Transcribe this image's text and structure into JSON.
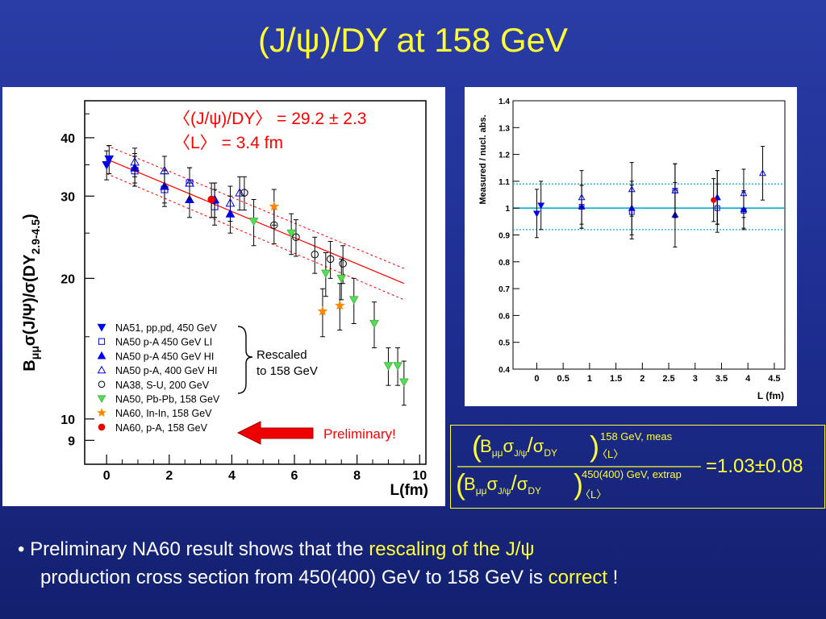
{
  "slide": {
    "title": "(J/ψ)/DY at 158 GeV",
    "bullet": {
      "marker": "•",
      "p1": "Preliminary NA60 result shows that the ",
      "h1": "rescaling of the J/ψ",
      "p2": "production cross section from 450(400) GeV to 158 GeV is ",
      "h2": "correct",
      "p3": " !"
    }
  },
  "colors": {
    "title": "#ffff33",
    "background": "#1f2f94",
    "fit": "#ff0000",
    "preliminary": "#ff0000",
    "cyan": "#00b0d0"
  },
  "chart_data": [
    {
      "type": "scatter",
      "ylabel_parts": {
        "b": "B",
        "mumu": "μμ",
        "sigma1": "σ(J/Ψ)/σ(DY",
        "sub": "2.9-4.5",
        "close": ")"
      },
      "xlabel": "L(fm)",
      "xlim": [
        -0.7,
        10.2
      ],
      "ylim": [
        8,
        48
      ],
      "yscale": "log",
      "x_ticks": [
        0,
        2,
        4,
        6,
        8,
        10
      ],
      "y_ticks": [
        9,
        10,
        20,
        30,
        40
      ],
      "annotation": {
        "line1": "〈(J/ψ)/DY〉 = 29.2 ± 2.3",
        "line2": "〈L〉 = 3.4 fm",
        "color": "#ff0000"
      },
      "fit": {
        "x": [
          0,
          9.5
        ],
        "y": [
          36,
          19.5
        ],
        "upper": [
          38.5,
          21
        ],
        "lower": [
          33.5,
          18
        ]
      },
      "bracket_label": {
        "line1": "Rescaled",
        "line2": "to 158 GeV"
      },
      "preliminary_label": "Preliminary!",
      "legend": [
        {
          "label": "NA51, pp,pd, 450 GeV",
          "marker": "tri-down",
          "fill": "#0000ee",
          "stroke": "#0000ee"
        },
        {
          "label": "NA50 p-A 450 GeV LI",
          "marker": "square-open",
          "fill": "none",
          "stroke": "#0000ee"
        },
        {
          "label": "NA50 p-A 450 GeV HI",
          "marker": "tri-up",
          "fill": "#0000ee",
          "stroke": "#0000ee"
        },
        {
          "label": "NA50 p-A, 400 GeV HI",
          "marker": "tri-up-open",
          "fill": "none",
          "stroke": "#0000ee"
        },
        {
          "label": "NA38, S-U, 200 GeV",
          "marker": "circle-open",
          "fill": "none",
          "stroke": "#000000"
        },
        {
          "label": "NA50, Pb-Pb, 158 GeV",
          "marker": "tri-down",
          "fill": "#55dd55",
          "stroke": "#44bb44"
        },
        {
          "label": "NA60, In-In, 158 GeV",
          "marker": "star",
          "fill": "#ff8800",
          "stroke": "#ff8800"
        },
        {
          "label": "NA60, p-A, 158 GeV",
          "marker": "circle",
          "fill": "#ee0000",
          "stroke": "#ee0000"
        }
      ],
      "series": [
        {
          "name": "NA51, pp,pd, 450 GeV",
          "points": [
            {
              "x": 0,
              "y": 35,
              "err": 2.5
            },
            {
              "x": 0.08,
              "y": 36,
              "err": 2.5
            }
          ]
        },
        {
          "name": "NA50 p-A 450 GeV LI",
          "points": [
            {
              "x": 0.9,
              "y": 34,
              "err": 2.5
            },
            {
              "x": 1.85,
              "y": 31,
              "err": 2.5
            },
            {
              "x": 2.65,
              "y": 32,
              "err": 2.5
            },
            {
              "x": 3.45,
              "y": 28.5,
              "err": 2.5
            }
          ]
        },
        {
          "name": "NA50 p-A 450 GeV HI",
          "points": [
            {
              "x": 0.9,
              "y": 34.5,
              "err": 2.5
            },
            {
              "x": 1.85,
              "y": 31.5,
              "err": 2.5
            },
            {
              "x": 2.65,
              "y": 29.5,
              "err": 2.5
            },
            {
              "x": 3.45,
              "y": 29.5,
              "err": 2.5
            },
            {
              "x": 3.95,
              "y": 27.5,
              "err": 2.5
            }
          ]
        },
        {
          "name": "NA50 p-A, 400 GeV HI",
          "points": [
            {
              "x": 0.9,
              "y": 35.5,
              "err": 2.5
            },
            {
              "x": 1.85,
              "y": 34,
              "err": 2.5
            },
            {
              "x": 2.65,
              "y": 32,
              "err": 2.5
            },
            {
              "x": 3.45,
              "y": 29.5,
              "err": 2.5
            },
            {
              "x": 3.95,
              "y": 29,
              "err": 2.5
            },
            {
              "x": 4.25,
              "y": 30.5,
              "err": 2.5
            }
          ]
        },
        {
          "name": "NA38, S-U, 200 GeV",
          "points": [
            {
              "x": 4.4,
              "y": 30.5,
              "err": 2.5
            },
            {
              "x": 5.35,
              "y": 26,
              "err": 2.3
            },
            {
              "x": 6.05,
              "y": 24.5,
              "err": 2.2
            },
            {
              "x": 6.65,
              "y": 22.5,
              "err": 2
            },
            {
              "x": 7.15,
              "y": 22,
              "err": 2
            },
            {
              "x": 7.55,
              "y": 21.5,
              "err": 2
            }
          ]
        },
        {
          "name": "NA50, Pb-Pb, 158 GeV",
          "points": [
            {
              "x": 4.7,
              "y": 26.5,
              "err": 3
            },
            {
              "x": 5.9,
              "y": 25,
              "err": 2.5
            },
            {
              "x": 7.0,
              "y": 20.5,
              "err": 2.2
            },
            {
              "x": 7.5,
              "y": 20,
              "err": 2
            },
            {
              "x": 7.9,
              "y": 18,
              "err": 2
            },
            {
              "x": 8.55,
              "y": 16,
              "err": 1.8
            },
            {
              "x": 9.0,
              "y": 13,
              "err": 1.2
            },
            {
              "x": 9.3,
              "y": 13,
              "err": 1.2
            },
            {
              "x": 9.5,
              "y": 12,
              "err": 1.3
            }
          ]
        },
        {
          "name": "NA60, In-In, 158 GeV",
          "points": [
            {
              "x": 5.35,
              "y": 28.5,
              "err": 2.5
            },
            {
              "x": 6.9,
              "y": 17,
              "err": 2
            },
            {
              "x": 7.45,
              "y": 17.5,
              "err": 2
            }
          ]
        },
        {
          "name": "NA60, p-A, 158 GeV",
          "points": [
            {
              "x": 3.35,
              "y": 29.5,
              "err": 2.5
            }
          ]
        }
      ]
    },
    {
      "type": "scatter",
      "ylabel": "Measured / nucl. abs.",
      "xlabel": "L (fm)",
      "xlim": [
        -0.45,
        4.7
      ],
      "ylim": [
        0.4,
        1.4
      ],
      "x_ticks": [
        "0",
        "0.5",
        "1",
        "1.5",
        "2",
        "2.5",
        "3",
        "3.5",
        "4",
        "4.5"
      ],
      "y_ticks": [
        "0.4",
        "0.5",
        "0.6",
        "0.7",
        "0.8",
        "0.9",
        "1",
        "1.1",
        "1.2",
        "1.3",
        "1.4"
      ],
      "reference_line": 1.0,
      "band": [
        0.92,
        1.09
      ],
      "series": [
        {
          "name": "NA51, pp,pd, 450 GeV",
          "points": [
            {
              "x": 0,
              "y": 0.98,
              "err": 0.09
            },
            {
              "x": 0.08,
              "y": 1.01,
              "err": 0.09
            }
          ]
        },
        {
          "name": "NA50 p-A 450 GeV LI",
          "points": [
            {
              "x": 0.85,
              "y": 1.005,
              "err": 0.08
            },
            {
              "x": 1.8,
              "y": 0.985,
              "err": 0.1
            },
            {
              "x": 2.62,
              "y": 1.065,
              "err": 0.1
            },
            {
              "x": 3.42,
              "y": 1.0,
              "err": 0.09
            },
            {
              "x": 3.92,
              "y": 0.99,
              "err": 0.07
            }
          ]
        },
        {
          "name": "NA50 p-A 450 GeV HI",
          "points": [
            {
              "x": 0.85,
              "y": 1.005,
              "err": 0.08
            },
            {
              "x": 1.8,
              "y": 1.0,
              "err": 0.1
            },
            {
              "x": 2.62,
              "y": 0.975,
              "err": 0.12
            },
            {
              "x": 3.42,
              "y": 1.04,
              "err": 0.1
            },
            {
              "x": 3.92,
              "y": 0.995,
              "err": 0.07
            }
          ]
        },
        {
          "name": "NA50 p-A, 400 GeV HI",
          "points": [
            {
              "x": 0.85,
              "y": 1.04,
              "err": 0.1
            },
            {
              "x": 1.8,
              "y": 1.07,
              "err": 0.1
            },
            {
              "x": 2.62,
              "y": 1.065,
              "err": 0.1
            },
            {
              "x": 3.42,
              "y": 1.04,
              "err": 0.1
            },
            {
              "x": 3.92,
              "y": 1.055,
              "err": 0.09
            },
            {
              "x": 4.28,
              "y": 1.13,
              "err": 0.1
            }
          ]
        },
        {
          "name": "NA60, p-A, 158 GeV",
          "points": [
            {
              "x": 3.35,
              "y": 1.03,
              "err": 0.08
            }
          ]
        }
      ]
    }
  ],
  "formula": {
    "num_B": "B",
    "num_mumu": "μμ",
    "num_sigma": "σ",
    "num_sub": "J/ψ",
    "num_slash": "/",
    "num_sigma2": "σ",
    "num_dy": "DY",
    "num_sup": "158 GeV, meas",
    "num_L": "〈L〉",
    "den_B": "B",
    "den_mumu": "μμ",
    "den_sigma": "σ",
    "den_sub": "J/ψ",
    "den_slash": "/",
    "den_sigma2": "σ",
    "den_dy": "DY",
    "den_sup": "450(400)  GeV, extrap",
    "den_L": "〈L〉",
    "result": "=1.03±0.08"
  }
}
